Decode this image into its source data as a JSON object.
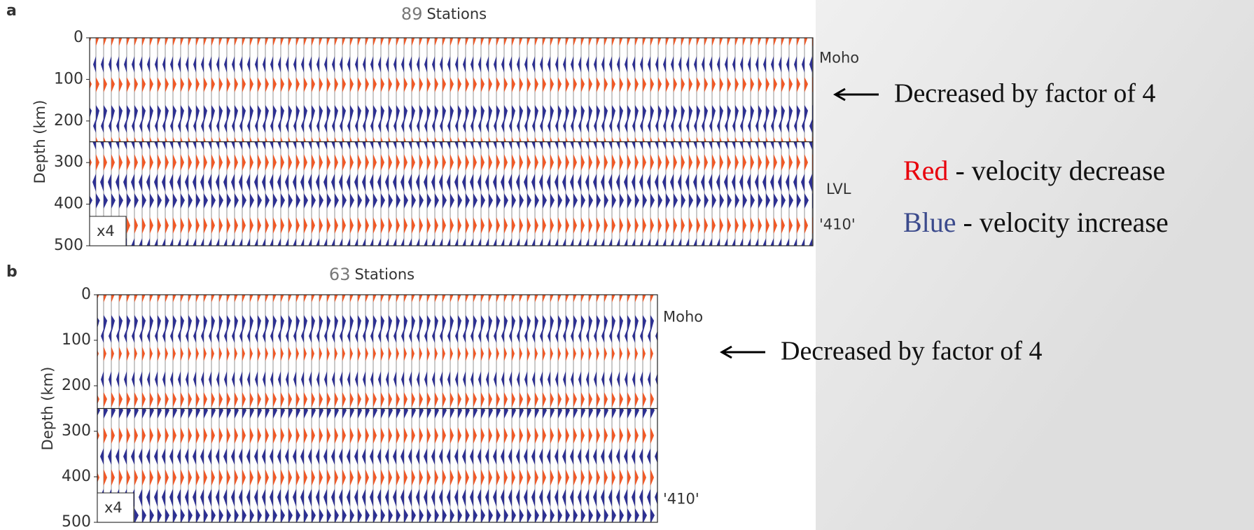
{
  "panels": [
    {
      "letter": "a",
      "title_count": "89",
      "title": "Stations",
      "y_label": "Depth (km)",
      "ylim": [
        0,
        500
      ],
      "yticks": [
        0,
        100,
        200,
        300,
        400,
        500
      ],
      "labels": [
        "Moho",
        "LVL",
        "'410'"
      ],
      "scale_note": "x4",
      "annotation": "Decreased by factor of 4"
    },
    {
      "letter": "b",
      "title_count": "63",
      "title": "Stations",
      "y_label": "Depth (km)",
      "ylim": [
        0,
        500
      ],
      "yticks": [
        0,
        100,
        200,
        300,
        400,
        500
      ],
      "labels": [
        "Moho",
        "'410'"
      ],
      "scale_note": "x4",
      "annotation": "Decreased by factor of 4"
    }
  ],
  "legend": [
    {
      "word": "Red",
      "text": "- velocity decrease",
      "color": "#e8000b"
    },
    {
      "word": "Blue",
      "text": "- velocity increase",
      "color": "#3b4a8c"
    }
  ]
}
